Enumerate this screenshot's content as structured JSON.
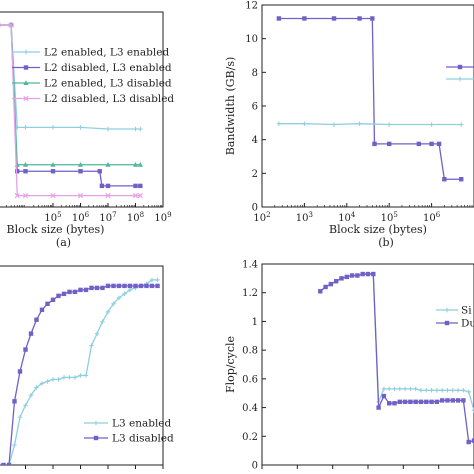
{
  "chart_data": [
    {
      "type": "line",
      "panel_label": "",
      "xlabel": "Block size (bytes)",
      "sublabel": "(a)",
      "ylabel": "",
      "xscale": "log",
      "xlim": [
        1000,
        1000000000
      ],
      "ylim": [
        0,
        12
      ],
      "x_ticks": [
        100000,
        1000000,
        10000000,
        100000000,
        1000000000
      ],
      "x_tick_labels": [
        "10^5",
        "10^6",
        "10^7",
        "10^8",
        "10^9"
      ],
      "y_ticks": [],
      "grid": false,
      "legend_position": "right",
      "series": [
        {
          "name": "L2 enabled, L3 enabled",
          "color": "#8fcfe0",
          "marker": "plus",
          "x": [
            1000,
            3000,
            5000,
            10000,
            100000,
            1000000,
            10000000,
            100000000,
            150000000
          ],
          "y": [
            11.2,
            11.2,
            4.9,
            4.9,
            4.9,
            4.9,
            4.8,
            4.8,
            4.8
          ]
        },
        {
          "name": "L2 disabled, L3 enabled",
          "color": "#7060c8",
          "marker": "square",
          "x": [
            1000,
            3000,
            5000,
            10000,
            100000,
            1000000,
            5000000,
            6000000,
            10000000,
            100000000,
            150000000
          ],
          "y": [
            11.2,
            11.2,
            2.2,
            2.2,
            2.2,
            2.2,
            2.2,
            1.3,
            1.3,
            1.3,
            1.3
          ]
        },
        {
          "name": "L2 enabled, L3 disabled",
          "color": "#4fb89a",
          "marker": "triangle",
          "x": [
            1000,
            3000,
            5000,
            10000,
            100000,
            1000000,
            10000000,
            100000000,
            150000000
          ],
          "y": [
            11.2,
            11.2,
            2.6,
            2.6,
            2.6,
            2.6,
            2.6,
            2.6,
            2.6
          ]
        },
        {
          "name": "L2 disabled, L3 disabled",
          "color": "#e7a1e8",
          "marker": "x",
          "x": [
            1000,
            3000,
            5000,
            10000,
            100000,
            1000000,
            10000000,
            100000000,
            150000000
          ],
          "y": [
            11.2,
            11.2,
            0.7,
            0.7,
            0.7,
            0.7,
            0.7,
            0.7,
            0.7
          ]
        }
      ]
    },
    {
      "type": "line",
      "panel_label": "",
      "xlabel": "Block size  (bytes)",
      "sublabel": "(b)",
      "ylabel": "Bandwidth (GB/s)",
      "xscale": "log",
      "xlim": [
        100,
        10000000
      ],
      "ylim": [
        0,
        12
      ],
      "x_ticks": [
        100,
        1000,
        10000,
        100000,
        1000000
      ],
      "x_tick_labels": [
        "10^2",
        "10^3",
        "10^4",
        "10^5",
        "10^6"
      ],
      "y_ticks": [
        0,
        2,
        4,
        6,
        8,
        10,
        12
      ],
      "grid": false,
      "legend_position": "right",
      "series": [
        {
          "name": "",
          "color": "#7060c8",
          "marker": "square",
          "x": [
            250,
            1000,
            5000,
            20000,
            40000,
            45000,
            100000,
            500000,
            1000000,
            1500000,
            2000000,
            5000000
          ],
          "y": [
            11.2,
            11.2,
            11.2,
            11.2,
            11.2,
            3.75,
            3.75,
            3.75,
            3.75,
            3.75,
            1.65,
            1.65
          ]
        },
        {
          "name": "",
          "color": "#8fcfe0",
          "marker": "plus",
          "x": [
            250,
            1000,
            5000,
            20000,
            100000,
            1000000,
            5000000
          ],
          "y": [
            4.95,
            4.95,
            4.9,
            4.95,
            4.9,
            4.9,
            4.9
          ]
        }
      ]
    },
    {
      "type": "line",
      "panel_label": "",
      "xlabel": "",
      "ylabel": "",
      "xlim": [
        0,
        30
      ],
      "ylim": [
        0,
        1
      ],
      "grid": false,
      "legend_position": "bottom-right",
      "series": [
        {
          "name": "L3 enabled",
          "color": "#8fcfe0",
          "marker": "plus",
          "x": [
            0,
            1,
            2,
            3,
            4,
            5,
            6,
            7,
            8,
            9,
            10,
            11,
            12,
            13,
            14,
            15,
            16,
            17,
            18,
            19,
            20,
            21,
            22,
            23,
            24,
            25,
            26,
            27,
            28,
            29
          ],
          "y": [
            0.0,
            0.0,
            0.0,
            0.1,
            0.24,
            0.3,
            0.35,
            0.39,
            0.41,
            0.42,
            0.43,
            0.43,
            0.44,
            0.44,
            0.44,
            0.45,
            0.45,
            0.6,
            0.66,
            0.72,
            0.77,
            0.81,
            0.84,
            0.86,
            0.88,
            0.89,
            0.9,
            0.91,
            0.93,
            0.93
          ]
        },
        {
          "name": "L3 disabled",
          "color": "#7060c8",
          "marker": "square",
          "x": [
            0,
            1,
            2,
            3,
            4,
            5,
            6,
            7,
            8,
            9,
            10,
            11,
            12,
            13,
            14,
            15,
            16,
            17,
            18,
            19,
            20,
            21,
            22,
            23,
            24,
            25,
            26,
            27,
            28,
            29
          ],
          "y": [
            0.0,
            0.0,
            0.0,
            0.32,
            0.47,
            0.58,
            0.66,
            0.73,
            0.78,
            0.81,
            0.83,
            0.85,
            0.86,
            0.87,
            0.87,
            0.88,
            0.88,
            0.89,
            0.89,
            0.89,
            0.9,
            0.9,
            0.9,
            0.9,
            0.9,
            0.9,
            0.9,
            0.9,
            0.9,
            0.9
          ]
        }
      ]
    },
    {
      "type": "line",
      "panel_label": "",
      "xlabel": "",
      "ylabel": "Flop/cycle",
      "xlim": [
        0,
        40
      ],
      "ylim": [
        0,
        1.4
      ],
      "y_ticks": [
        0,
        0.2,
        0.4,
        0.6,
        0.8,
        1.0,
        1.2,
        1.4
      ],
      "y_tick_labels": [
        "0",
        "0.2",
        "0.4",
        "0.6",
        "0.8",
        "1",
        "1.2",
        "1.4"
      ],
      "grid": false,
      "legend_position": "right",
      "legend_partial": [
        "Si",
        "Du"
      ],
      "series": [
        {
          "name": "Si",
          "color": "#8fcfe0",
          "marker": "plus",
          "x": [
            11,
            12,
            13,
            14,
            15,
            16,
            17,
            18,
            19,
            20,
            21,
            22,
            23,
            24,
            25,
            26,
            27,
            28,
            29,
            30,
            31,
            32,
            33,
            34,
            35,
            36,
            37,
            38,
            39,
            40
          ],
          "y": [
            1.21,
            1.24,
            1.26,
            1.28,
            1.3,
            1.31,
            1.32,
            1.32,
            1.33,
            1.33,
            1.33,
            0.44,
            0.53,
            0.53,
            0.53,
            0.53,
            0.53,
            0.53,
            0.53,
            0.52,
            0.52,
            0.52,
            0.52,
            0.52,
            0.52,
            0.52,
            0.52,
            0.52,
            0.51,
            0.38
          ]
        },
        {
          "name": "Du",
          "color": "#7060c8",
          "marker": "square",
          "x": [
            11,
            12,
            13,
            14,
            15,
            16,
            17,
            18,
            19,
            20,
            21,
            22,
            23,
            24,
            25,
            26,
            27,
            28,
            29,
            30,
            31,
            32,
            33,
            34,
            35,
            36,
            37,
            38,
            39,
            40
          ],
          "y": [
            1.21,
            1.24,
            1.26,
            1.28,
            1.3,
            1.31,
            1.32,
            1.32,
            1.33,
            1.33,
            1.33,
            0.4,
            0.48,
            0.43,
            0.43,
            0.44,
            0.44,
            0.44,
            0.44,
            0.44,
            0.44,
            0.44,
            0.44,
            0.45,
            0.45,
            0.45,
            0.45,
            0.45,
            0.16,
            0.17
          ]
        }
      ]
    }
  ]
}
